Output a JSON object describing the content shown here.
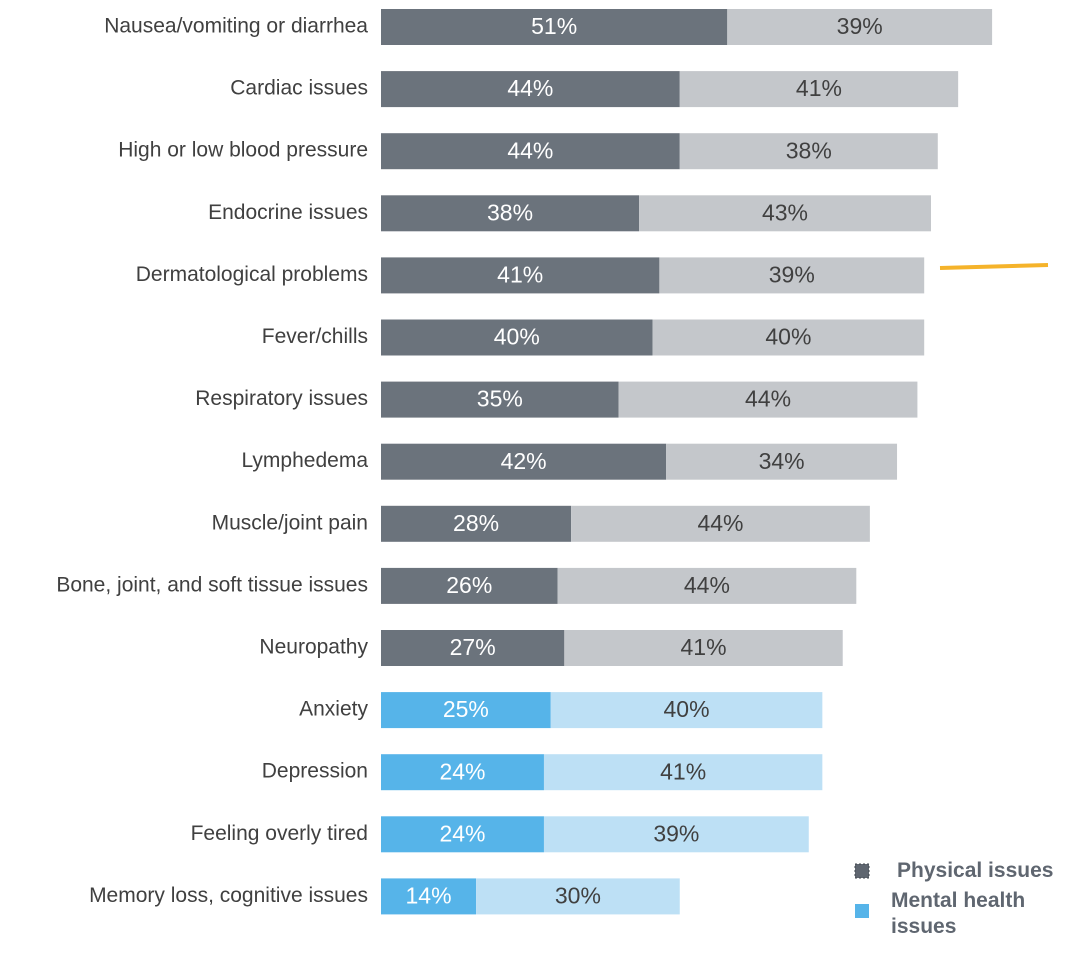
{
  "chart_data": {
    "type": "stacked-bar",
    "orientation": "horizontal",
    "categories": [
      "Nausea/vomiting or diarrhea",
      "Cardiac issues",
      "High or low blood pressure",
      "Endocrine issues",
      "Dermatological problems",
      "Fever/chills",
      "Respiratory issues",
      "Lymphedema",
      "Muscle/joint pain",
      "Bone, joint, and soft tissue issues",
      "Neuropathy",
      "Anxiety",
      "Depression",
      "Feeling overly tired",
      "Memory loss, cognitive issues"
    ],
    "series": [
      {
        "values": [
          51,
          44,
          44,
          38,
          41,
          40,
          35,
          42,
          28,
          26,
          27,
          25,
          24,
          24,
          14
        ],
        "value_labels": [
          "51%",
          "44%",
          "44%",
          "38%",
          "41%",
          "40%",
          "35%",
          "42%",
          "28%",
          "26%",
          "27%",
          "25%",
          "24%",
          "24%",
          "14%"
        ],
        "colors": [
          "#6b737c",
          "#6b737c",
          "#6b737c",
          "#6b737c",
          "#6b737c",
          "#6b737c",
          "#6b737c",
          "#6b737c",
          "#6b737c",
          "#6b737c",
          "#6b737c",
          "#56b4e9",
          "#56b4e9",
          "#56b4e9",
          "#56b4e9"
        ],
        "label_color": "#ffffff"
      },
      {
        "values": [
          39,
          41,
          38,
          43,
          39,
          40,
          44,
          34,
          44,
          44,
          41,
          40,
          41,
          39,
          30
        ],
        "value_labels": [
          "39%",
          "41%",
          "38%",
          "43%",
          "39%",
          "40%",
          "44%",
          "34%",
          "44%",
          "44%",
          "41%",
          "40%",
          "41%",
          "39%",
          "30%"
        ],
        "colors": [
          "#c4c7cb",
          "#c4c7cb",
          "#c4c7cb",
          "#c4c7cb",
          "#c4c7cb",
          "#c4c7cb",
          "#c4c7cb",
          "#c4c7cb",
          "#c4c7cb",
          "#c4c7cb",
          "#c4c7cb",
          "#bde0f5",
          "#bde0f5",
          "#bde0f5",
          "#bde0f5"
        ],
        "label_color": "#404040"
      }
    ],
    "legend": [
      {
        "label": "Physical issues",
        "color": "#5f6670"
      },
      {
        "label": "Mental health issues",
        "color": "#56b4e9"
      }
    ],
    "legend_position": "lower right"
  }
}
